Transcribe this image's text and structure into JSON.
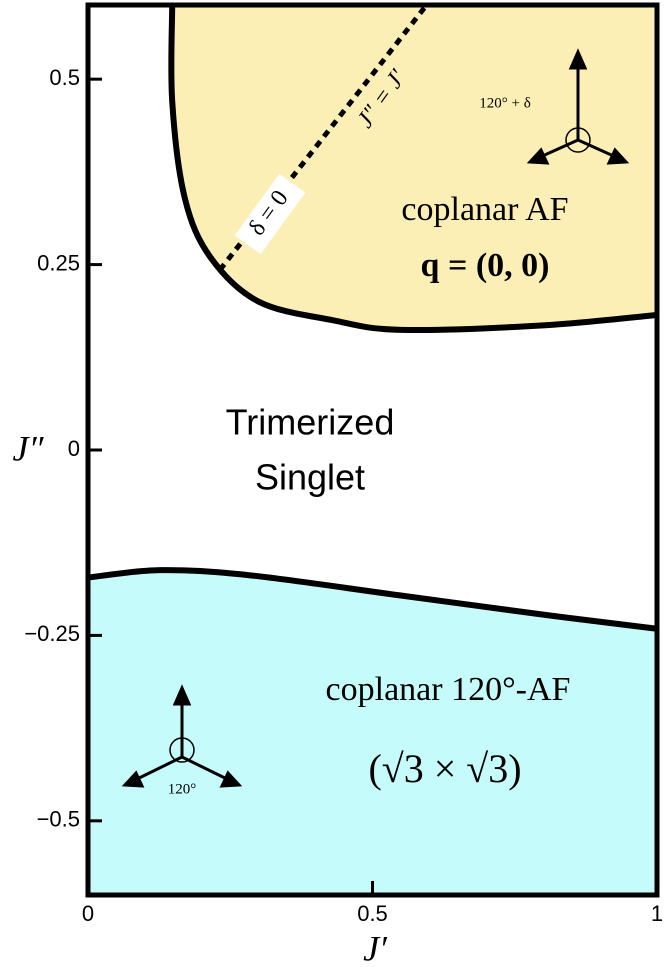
{
  "chart_data": {
    "type": "line",
    "xlabel": "J′",
    "ylabel": "J″",
    "xlim": [
      0,
      1
    ],
    "ylim": [
      -0.6,
      0.6
    ],
    "xticks": [
      0,
      0.5,
      1
    ],
    "yticks": [
      {
        "value": -0.5,
        "label": "−0.5"
      },
      {
        "value": -0.25,
        "label": "−0.25"
      },
      0,
      0.25,
      0.5
    ],
    "series": [
      {
        "color": "#000000",
        "fill_color": "#fcefb6",
        "fill_to": "top",
        "x": [
          0.148,
          0.148,
          0.17,
          0.215,
          0.3,
          0.43,
          0.55,
          0.8,
          1
        ],
        "values": [
          0.6,
          0.47,
          0.34,
          0.26,
          0.2,
          0.175,
          0.162,
          0.168,
          0.182
        ]
      },
      {
        "color": "#000000",
        "fill_color": "#c6fbfc",
        "fill_to": "bottom",
        "x": [
          0,
          0.127,
          0.285,
          0.548,
          0.81,
          1
        ],
        "values": [
          -0.172,
          -0.162,
          -0.169,
          -0.196,
          -0.223,
          -0.241
        ]
      },
      {
        "color": "#000000",
        "dashed": true,
        "x": [
          0.232,
          0.592
        ],
        "values": [
          0.243,
          0.597
        ]
      }
    ],
    "annotations": [
      "coplanar AF",
      "q = (0, 0)",
      "Trimerized",
      "Singlet",
      "coplanar 120°-AF",
      "(√3 × √3)",
      "δ = 0",
      "J″ = J′",
      "120° + δ",
      "120°"
    ]
  }
}
